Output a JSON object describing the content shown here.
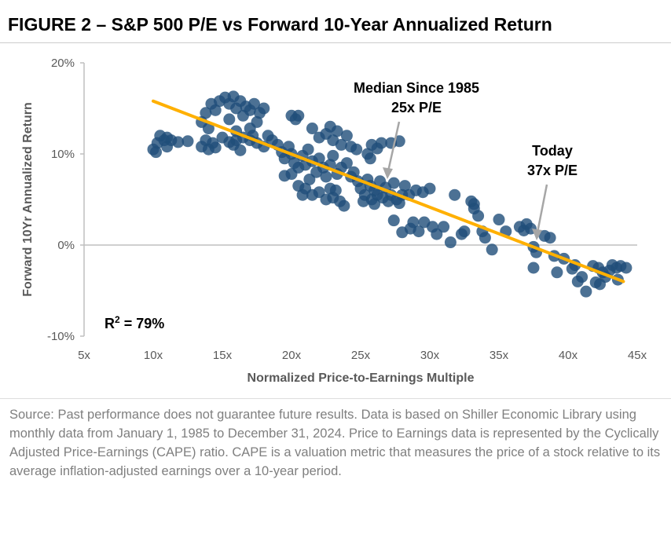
{
  "title": "FIGURE 2 – S&P 500 P/E vs Forward 10-Year Annualized Return",
  "source": "Source: Past performance does not guarantee future results. Data is based on Shiller Economic Library using monthly data from January 1, 1985 to December 31, 2024. Price to Earnings data is represented by the Cyclically Adjusted Price-Earnings (CAPE) ratio. CAPE is a valuation metric that measures the price of a stock relative to its average inflation-adjusted earnings over a 10-year period.",
  "colors": {
    "points": "#1f4e79",
    "trend": "#ffb000",
    "arrow": "#a6a6a6"
  },
  "chart_data": {
    "type": "scatter",
    "xlabel": "Normalized Price-to-Earnings Multiple",
    "ylabel": "Forward 10Yr Annualized Return",
    "xlim": [
      5,
      45
    ],
    "ylim": [
      -10,
      20
    ],
    "x_ticks": [
      "5x",
      "10x",
      "15x",
      "20x",
      "25x",
      "30x",
      "35x",
      "40x",
      "45x"
    ],
    "y_ticks": [
      "20%",
      "10%",
      "0%",
      "-10%"
    ],
    "trendline": {
      "x": [
        10,
        44
      ],
      "y": [
        15.8,
        -4.0
      ]
    },
    "r2_label": "R",
    "r2_sup": "2",
    "r2_value": " = 79%",
    "annotations": [
      {
        "line1": "Median Since 1985",
        "line2": "25x P/E",
        "x": 25,
        "y": 7.5
      },
      {
        "line1": "Today",
        "line2": "37x P/E",
        "x": 37,
        "y": 0.3
      }
    ],
    "points": [
      [
        10,
        10.5
      ],
      [
        10.3,
        11.2
      ],
      [
        10.5,
        12
      ],
      [
        10.8,
        11.5
      ],
      [
        11,
        10.8
      ],
      [
        11.3,
        11.5
      ],
      [
        11.8,
        11.3
      ],
      [
        12.5,
        11.4
      ],
      [
        10.2,
        10.2
      ],
      [
        11,
        11.8
      ],
      [
        13.5,
        10.8
      ],
      [
        13.8,
        11.5
      ],
      [
        14,
        10.5
      ],
      [
        14.3,
        11.2
      ],
      [
        14.5,
        10.7
      ],
      [
        15,
        11.8
      ],
      [
        15.5,
        11.3
      ],
      [
        16,
        11.5
      ],
      [
        16.5,
        11.8
      ],
      [
        17,
        11.5
      ],
      [
        17.5,
        11.2
      ],
      [
        18,
        10.8
      ],
      [
        16.3,
        10.4
      ],
      [
        15.8,
        11
      ],
      [
        17.2,
        12
      ],
      [
        13.5,
        13.5
      ],
      [
        13.8,
        14.5
      ],
      [
        14.2,
        15.5
      ],
      [
        14.5,
        14.8
      ],
      [
        14.8,
        15.8
      ],
      [
        15.2,
        16.2
      ],
      [
        15.5,
        15.5
      ],
      [
        15.8,
        16.3
      ],
      [
        16,
        15
      ],
      [
        16.3,
        15.8
      ],
      [
        16.7,
        15.2
      ],
      [
        17,
        14.8
      ],
      [
        17.3,
        15.5
      ],
      [
        17.7,
        14.5
      ],
      [
        18,
        15
      ],
      [
        17.5,
        13.5
      ],
      [
        16.5,
        14.2
      ],
      [
        14,
        12.8
      ],
      [
        15.5,
        13.8
      ],
      [
        16,
        12.5
      ],
      [
        17,
        12.8
      ],
      [
        18.3,
        12
      ],
      [
        18.6,
        11.5
      ],
      [
        20,
        14.2
      ],
      [
        20.3,
        13.8
      ],
      [
        20.5,
        14.2
      ],
      [
        21.5,
        12.8
      ],
      [
        22,
        11.8
      ],
      [
        22.5,
        12.2
      ],
      [
        23,
        11.5
      ],
      [
        23.3,
        12.5
      ],
      [
        23.6,
        11
      ],
      [
        24,
        12
      ],
      [
        24.3,
        10.8
      ],
      [
        24.7,
        10.5
      ],
      [
        22.8,
        13
      ],
      [
        25.8,
        11
      ],
      [
        26.2,
        10.6
      ],
      [
        26.5,
        11.2
      ],
      [
        27.2,
        11.2
      ],
      [
        27.8,
        11.4
      ],
      [
        25.5,
        10
      ],
      [
        25.7,
        9.5
      ],
      [
        19,
        11
      ],
      [
        19.3,
        10.2
      ],
      [
        19.5,
        9.5
      ],
      [
        19.8,
        10.8
      ],
      [
        20,
        10
      ],
      [
        20.2,
        9
      ],
      [
        20.5,
        8.5
      ],
      [
        20.8,
        9.8
      ],
      [
        21,
        8.8
      ],
      [
        21.2,
        10.5
      ],
      [
        21.5,
        9.2
      ],
      [
        21.8,
        8
      ],
      [
        22,
        9.5
      ],
      [
        22.3,
        8.5
      ],
      [
        22.5,
        7.5
      ],
      [
        22.8,
        8.8
      ],
      [
        23,
        9.8
      ],
      [
        23.3,
        7.8
      ],
      [
        23.6,
        8.5
      ],
      [
        24,
        9
      ],
      [
        24.3,
        7.5
      ],
      [
        24.5,
        8
      ],
      [
        19.5,
        7.6
      ],
      [
        20,
        7.8
      ],
      [
        20.5,
        6.5
      ],
      [
        21,
        6.2
      ],
      [
        21.3,
        7.2
      ],
      [
        22,
        5.8
      ],
      [
        22.5,
        5
      ],
      [
        23,
        5.2
      ],
      [
        23.5,
        4.8
      ],
      [
        23.8,
        4.3
      ],
      [
        21.5,
        5.5
      ],
      [
        22.8,
        6.2
      ],
      [
        20.8,
        5.5
      ],
      [
        23.2,
        6
      ],
      [
        24.8,
        7
      ],
      [
        25,
        6.2
      ],
      [
        25.3,
        5.5
      ],
      [
        25.5,
        7.2
      ],
      [
        25.7,
        6.5
      ],
      [
        25.8,
        5
      ],
      [
        26,
        6
      ],
      [
        26.2,
        5.5
      ],
      [
        26.4,
        7
      ],
      [
        26.6,
        5.2
      ],
      [
        26.8,
        6.3
      ],
      [
        27,
        4.8
      ],
      [
        27.2,
        5.5
      ],
      [
        27.4,
        6.8
      ],
      [
        27.6,
        5
      ],
      [
        27.8,
        4.6
      ],
      [
        28,
        5.5
      ],
      [
        26,
        4.5
      ],
      [
        25.2,
        4.8
      ],
      [
        27.4,
        2.7
      ],
      [
        28.2,
        6.5
      ],
      [
        28.5,
        5.5
      ],
      [
        29,
        6
      ],
      [
        29.5,
        5.8
      ],
      [
        30,
        6.2
      ],
      [
        28,
        1.4
      ],
      [
        28.6,
        1.8
      ],
      [
        28.8,
        2.5
      ],
      [
        29.2,
        1.5
      ],
      [
        29.6,
        2.5
      ],
      [
        30.2,
        2
      ],
      [
        30.5,
        1.2
      ],
      [
        31,
        2
      ],
      [
        31.5,
        0.3
      ],
      [
        31.8,
        5.5
      ],
      [
        32.3,
        1.2
      ],
      [
        32.5,
        1.5
      ],
      [
        33,
        4.8
      ],
      [
        33.2,
        4
      ],
      [
        33.5,
        3.2
      ],
      [
        33.2,
        4.5
      ],
      [
        33.8,
        1.5
      ],
      [
        34,
        0.8
      ],
      [
        34.5,
        -0.5
      ],
      [
        35,
        2.8
      ],
      [
        35.5,
        1.5
      ],
      [
        36.5,
        2
      ],
      [
        36.8,
        1.6
      ],
      [
        37,
        2.3
      ],
      [
        37.3,
        1.8
      ],
      [
        37.5,
        -0.2
      ],
      [
        37.7,
        -0.8
      ],
      [
        37.5,
        -2.5
      ],
      [
        38.3,
        1
      ],
      [
        38.7,
        0.8
      ],
      [
        39,
        -1.2
      ],
      [
        39.2,
        -3
      ],
      [
        39.7,
        -1.5
      ],
      [
        40.5,
        -2.2
      ],
      [
        40.7,
        -4
      ],
      [
        41.3,
        -5.1
      ],
      [
        41,
        -3.5
      ],
      [
        41.8,
        -2.3
      ],
      [
        42.2,
        -2.5
      ],
      [
        42.5,
        -3
      ],
      [
        42.7,
        -3.5
      ],
      [
        43,
        -2.8
      ],
      [
        43.2,
        -2.2
      ],
      [
        43.5,
        -2.5
      ],
      [
        43.8,
        -2.3
      ],
      [
        44.2,
        -2.5
      ],
      [
        42.3,
        -4.3
      ],
      [
        43.6,
        -3.8
      ],
      [
        40.3,
        -2.6
      ],
      [
        42,
        -4.1
      ]
    ]
  }
}
